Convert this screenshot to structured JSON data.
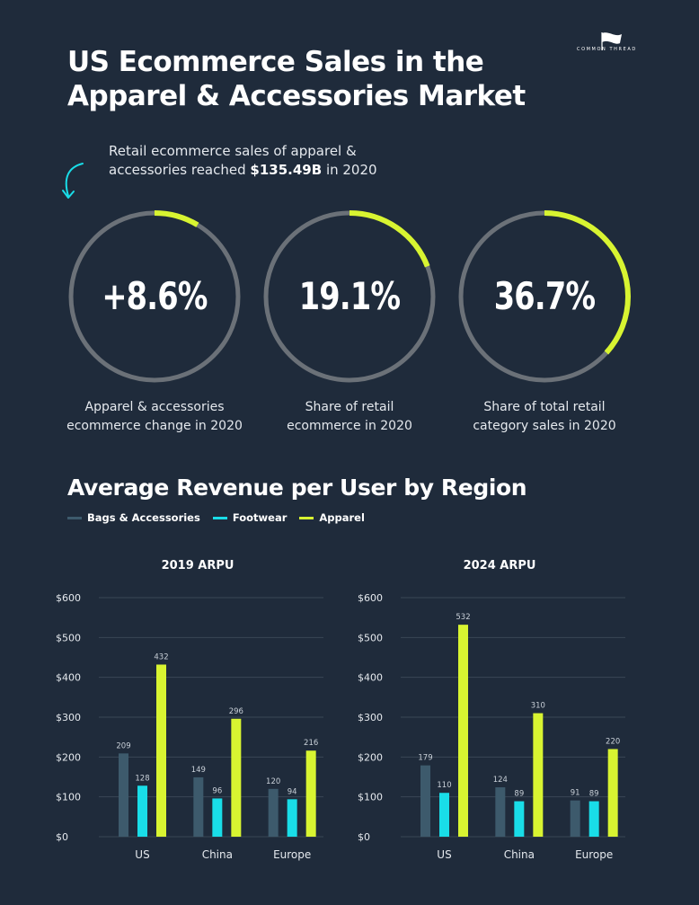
{
  "header": {
    "title_line1": "US Ecommerce Sales in the",
    "title_line2": "Apparel & Accessories Market",
    "brand": "COMMON THREAD"
  },
  "intro": {
    "line1": "Retail ecommerce sales of apparel &",
    "line2_prefix": "accessories reached ",
    "line2_bold": "$135.49B",
    "line2_suffix": " in 2020"
  },
  "stats": [
    {
      "value": "+8.6%",
      "fraction": 0.086,
      "label1": "Apparel & accessories",
      "label2": "ecommerce change in 2020"
    },
    {
      "value": "19.1%",
      "fraction": 0.191,
      "label1": "Share of retail",
      "label2": "ecommerce in 2020"
    },
    {
      "value": "36.7%",
      "fraction": 0.367,
      "label1": "Share of total retail",
      "label2": "category sales in 2020"
    }
  ],
  "colors": {
    "background": "#1f2b3b",
    "ring_track": "#6b7178",
    "bags": "#3d5a6c",
    "footwear": "#19dde8",
    "apparel": "#d8f431",
    "grid": "#3a4756"
  },
  "section_title": "Average Revenue per User by Region",
  "chart_data": [
    {
      "type": "bar",
      "title": "2019 ARPU",
      "categories": [
        "US",
        "China",
        "Europe"
      ],
      "series": [
        {
          "name": "Bags & Accessories",
          "values": [
            209,
            149,
            120
          ]
        },
        {
          "name": "Footwear",
          "values": [
            128,
            96,
            94
          ]
        },
        {
          "name": "Apparel",
          "values": [
            432,
            296,
            216
          ]
        }
      ],
      "yticks": [
        "$0",
        "$100",
        "$200",
        "$300",
        "$400",
        "$500",
        "$600"
      ],
      "ylim": [
        0,
        600
      ],
      "legend": "top-left",
      "grid": true
    },
    {
      "type": "bar",
      "title": "2024 ARPU",
      "categories": [
        "US",
        "China",
        "Europe"
      ],
      "series": [
        {
          "name": "Bags & Accessories",
          "values": [
            179,
            124,
            91
          ]
        },
        {
          "name": "Footwear",
          "values": [
            110,
            89,
            89
          ]
        },
        {
          "name": "Apparel",
          "values": [
            532,
            310,
            220
          ]
        }
      ],
      "yticks": [
        "$0",
        "$100",
        "$200",
        "$300",
        "$400",
        "$500",
        "$600"
      ],
      "ylim": [
        0,
        600
      ],
      "legend": "top-left",
      "grid": true
    }
  ]
}
